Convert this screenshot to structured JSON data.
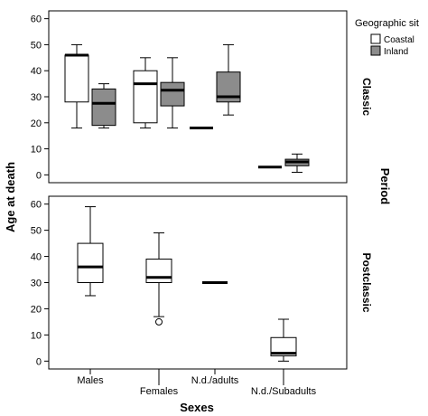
{
  "chart_data": {
    "type": "boxplot",
    "xlabel": "Sexes",
    "ylabel": "Age at death",
    "facet_label": "Period",
    "legend": {
      "title": "Geographic sit",
      "placement": "top-right",
      "entries": [
        {
          "name": "Coastal",
          "color": "#ffffff"
        },
        {
          "name": "Inland",
          "color": "#8c8c8c"
        }
      ]
    },
    "categories": [
      "Males",
      "Females",
      "N.d./adults",
      "N.d./Subadults"
    ],
    "ylim": [
      -3,
      63
    ],
    "yticks": [
      0,
      10,
      20,
      30,
      40,
      50,
      60
    ],
    "grid": false,
    "panels": [
      {
        "label": "Classic",
        "boxes": [
          {
            "category": "Males",
            "series": "Coastal",
            "min": 18,
            "q1": 28,
            "median": 46,
            "q3": 46,
            "max": 50
          },
          {
            "category": "Males",
            "series": "Inland",
            "min": 18,
            "q1": 19,
            "median": 27.5,
            "q3": 33,
            "max": 35
          },
          {
            "category": "Females",
            "series": "Coastal",
            "min": 18,
            "q1": 20,
            "median": 35,
            "q3": 40,
            "max": 45
          },
          {
            "category": "Females",
            "series": "Inland",
            "min": 18,
            "q1": 26.5,
            "median": 32.5,
            "q3": 35.5,
            "max": 45
          },
          {
            "category": "N.d./adults",
            "series": "Coastal",
            "min": 18,
            "q1": 18,
            "median": 18,
            "q3": 18,
            "max": 18
          },
          {
            "category": "N.d./adults",
            "series": "Inland",
            "min": 23,
            "q1": 28,
            "median": 30,
            "q3": 39.5,
            "max": 50
          },
          {
            "category": "N.d./Subadults",
            "series": "Coastal",
            "min": 3,
            "q1": 3,
            "median": 3,
            "q3": 3,
            "max": 3
          },
          {
            "category": "N.d./Subadults",
            "series": "Inland",
            "min": 1,
            "q1": 3.5,
            "median": 5,
            "q3": 6,
            "max": 8
          }
        ]
      },
      {
        "label": "Postclassic",
        "boxes": [
          {
            "category": "Males",
            "series": "Coastal",
            "min": 25,
            "q1": 30,
            "median": 36,
            "q3": 45,
            "max": 59
          },
          {
            "category": "Females",
            "series": "Coastal",
            "min": 17,
            "q1": 30,
            "median": 32,
            "q3": 39,
            "max": 49,
            "outliers": [
              15
            ]
          },
          {
            "category": "N.d./adults",
            "series": "Coastal",
            "min": 30,
            "q1": 30,
            "median": 30,
            "q3": 30,
            "max": 30
          },
          {
            "category": "N.d./Subadults",
            "series": "Coastal",
            "min": 0,
            "q1": 2,
            "median": 3,
            "q3": 9,
            "max": 16
          }
        ]
      }
    ]
  }
}
